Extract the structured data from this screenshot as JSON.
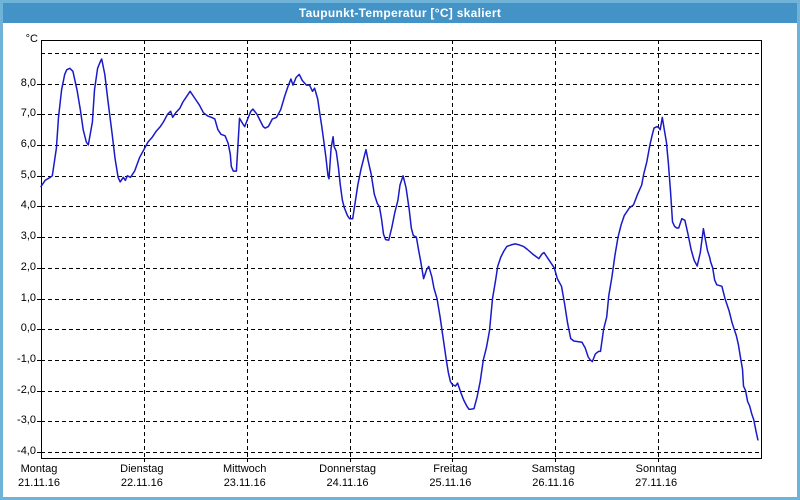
{
  "window": {
    "title": "Taupunkt-Temperatur [°C] skaliert",
    "title_bar_color": "#4493c6",
    "border_color": "#70b3d9"
  },
  "chart_data": {
    "type": "line",
    "title": "Taupunkt-Temperatur [°C] skaliert",
    "ylabel": "°C",
    "xlabel": "",
    "grid": "dashed-black",
    "legend": "none",
    "y_axis": {
      "unit_label": "°C",
      "grid_min": -4,
      "grid_max": 9,
      "tick_step": 1.0,
      "tick_labels": [
        "8,0",
        "7,0",
        "6,0",
        "5,0",
        "4,0",
        "3,0",
        "2,0",
        "1,0",
        "0,0",
        "-1,0",
        "-2,0",
        "-3,0",
        "-4,0"
      ]
    },
    "x_axis": {
      "days": [
        {
          "name": "Montag",
          "date": "21.11.16"
        },
        {
          "name": "Dienstag",
          "date": "22.11.16"
        },
        {
          "name": "Mittwoch",
          "date": "23.11.16"
        },
        {
          "name": "Donnerstag",
          "date": "24.11.16"
        },
        {
          "name": "Freitag",
          "date": "25.11.16"
        },
        {
          "name": "Samstag",
          "date": "26.11.16"
        },
        {
          "name": "Sonntag",
          "date": "27.11.16"
        }
      ]
    },
    "series": [
      {
        "name": "Taupunkt-Temperatur",
        "color": "#1a1ac8",
        "points": [
          [
            0.0,
            4.65
          ],
          [
            0.04,
            4.85
          ],
          [
            0.09,
            4.95
          ],
          [
            0.11,
            5.0
          ],
          [
            0.15,
            5.9
          ],
          [
            0.17,
            6.9
          ],
          [
            0.2,
            7.8
          ],
          [
            0.23,
            8.3
          ],
          [
            0.25,
            8.45
          ],
          [
            0.28,
            8.5
          ],
          [
            0.31,
            8.4
          ],
          [
            0.35,
            7.8
          ],
          [
            0.38,
            7.2
          ],
          [
            0.41,
            6.5
          ],
          [
            0.44,
            6.1
          ],
          [
            0.46,
            6.0
          ],
          [
            0.5,
            6.75
          ],
          [
            0.52,
            7.8
          ],
          [
            0.55,
            8.5
          ],
          [
            0.58,
            8.75
          ],
          [
            0.59,
            8.8
          ],
          [
            0.62,
            8.3
          ],
          [
            0.65,
            7.45
          ],
          [
            0.69,
            6.4
          ],
          [
            0.72,
            5.55
          ],
          [
            0.75,
            4.95
          ],
          [
            0.77,
            4.8
          ],
          [
            0.8,
            4.95
          ],
          [
            0.82,
            4.85
          ],
          [
            0.84,
            5.0
          ],
          [
            0.87,
            4.95
          ],
          [
            0.91,
            5.15
          ],
          [
            0.96,
            5.6
          ],
          [
            1.0,
            5.85
          ],
          [
            1.04,
            6.1
          ],
          [
            1.08,
            6.25
          ],
          [
            1.12,
            6.45
          ],
          [
            1.16,
            6.6
          ],
          [
            1.19,
            6.75
          ],
          [
            1.23,
            7.0
          ],
          [
            1.26,
            7.1
          ],
          [
            1.28,
            6.9
          ],
          [
            1.31,
            7.05
          ],
          [
            1.35,
            7.2
          ],
          [
            1.38,
            7.4
          ],
          [
            1.41,
            7.55
          ],
          [
            1.45,
            7.75
          ],
          [
            1.5,
            7.5
          ],
          [
            1.54,
            7.3
          ],
          [
            1.58,
            7.05
          ],
          [
            1.62,
            6.95
          ],
          [
            1.66,
            6.9
          ],
          [
            1.69,
            6.85
          ],
          [
            1.72,
            6.5
          ],
          [
            1.75,
            6.35
          ],
          [
            1.79,
            6.3
          ],
          [
            1.82,
            6.05
          ],
          [
            1.84,
            5.7
          ],
          [
            1.85,
            5.3
          ],
          [
            1.87,
            5.15
          ],
          [
            1.9,
            5.15
          ],
          [
            1.92,
            6.3
          ],
          [
            1.93,
            6.87
          ],
          [
            1.96,
            6.7
          ],
          [
            1.98,
            6.6
          ],
          [
            2.01,
            6.85
          ],
          [
            2.04,
            7.1
          ],
          [
            2.06,
            7.17
          ],
          [
            2.1,
            7.0
          ],
          [
            2.13,
            6.8
          ],
          [
            2.16,
            6.6
          ],
          [
            2.18,
            6.55
          ],
          [
            2.21,
            6.6
          ],
          [
            2.25,
            6.85
          ],
          [
            2.29,
            6.9
          ],
          [
            2.33,
            7.15
          ],
          [
            2.37,
            7.6
          ],
          [
            2.4,
            7.9
          ],
          [
            2.43,
            8.15
          ],
          [
            2.45,
            7.95
          ],
          [
            2.48,
            8.2
          ],
          [
            2.51,
            8.3
          ],
          [
            2.54,
            8.1
          ],
          [
            2.58,
            7.95
          ],
          [
            2.61,
            7.95
          ],
          [
            2.64,
            7.75
          ],
          [
            2.66,
            7.85
          ],
          [
            2.69,
            7.5
          ],
          [
            2.71,
            7.05
          ],
          [
            2.73,
            6.6
          ],
          [
            2.75,
            6.1
          ],
          [
            2.77,
            5.6
          ],
          [
            2.79,
            5.0
          ],
          [
            2.8,
            4.9
          ],
          [
            2.82,
            5.9
          ],
          [
            2.84,
            6.27
          ],
          [
            2.85,
            5.95
          ],
          [
            2.87,
            5.8
          ],
          [
            2.89,
            5.3
          ],
          [
            2.91,
            4.7
          ],
          [
            2.93,
            4.2
          ],
          [
            2.95,
            3.95
          ],
          [
            2.98,
            3.7
          ],
          [
            3.0,
            3.6
          ],
          [
            3.03,
            3.6
          ],
          [
            3.08,
            4.7
          ],
          [
            3.11,
            5.2
          ],
          [
            3.14,
            5.6
          ],
          [
            3.16,
            5.85
          ],
          [
            3.18,
            5.5
          ],
          [
            3.21,
            5.05
          ],
          [
            3.24,
            4.4
          ],
          [
            3.27,
            4.1
          ],
          [
            3.29,
            4.0
          ],
          [
            3.31,
            3.6
          ],
          [
            3.33,
            3.1
          ],
          [
            3.35,
            2.92
          ],
          [
            3.38,
            2.9
          ],
          [
            3.41,
            3.3
          ],
          [
            3.44,
            3.8
          ],
          [
            3.47,
            4.2
          ],
          [
            3.49,
            4.7
          ],
          [
            3.52,
            5.0
          ],
          [
            3.55,
            4.6
          ],
          [
            3.58,
            3.9
          ],
          [
            3.6,
            3.3
          ],
          [
            3.62,
            3.05
          ],
          [
            3.65,
            3.0
          ],
          [
            3.67,
            2.6
          ],
          [
            3.69,
            2.25
          ],
          [
            3.72,
            1.65
          ],
          [
            3.75,
            1.95
          ],
          [
            3.77,
            2.05
          ],
          [
            3.8,
            1.7
          ],
          [
            3.82,
            1.35
          ],
          [
            3.85,
            1.0
          ],
          [
            3.88,
            0.4
          ],
          [
            3.91,
            -0.3
          ],
          [
            3.94,
            -1.0
          ],
          [
            3.96,
            -1.4
          ],
          [
            3.98,
            -1.7
          ],
          [
            4.0,
            -1.8
          ],
          [
            4.03,
            -1.85
          ],
          [
            4.05,
            -1.75
          ],
          [
            4.08,
            -2.05
          ],
          [
            4.11,
            -2.3
          ],
          [
            4.14,
            -2.5
          ],
          [
            4.16,
            -2.6
          ],
          [
            4.18,
            -2.6
          ],
          [
            4.21,
            -2.58
          ],
          [
            4.24,
            -2.2
          ],
          [
            4.27,
            -1.7
          ],
          [
            4.3,
            -1.0
          ],
          [
            4.33,
            -0.6
          ],
          [
            4.36,
            -0.05
          ],
          [
            4.39,
            1.0
          ],
          [
            4.42,
            1.6
          ],
          [
            4.44,
            2.05
          ],
          [
            4.47,
            2.35
          ],
          [
            4.5,
            2.55
          ],
          [
            4.53,
            2.7
          ],
          [
            4.57,
            2.75
          ],
          [
            4.61,
            2.78
          ],
          [
            4.65,
            2.75
          ],
          [
            4.69,
            2.7
          ],
          [
            4.73,
            2.6
          ],
          [
            4.78,
            2.45
          ],
          [
            4.82,
            2.35
          ],
          [
            4.84,
            2.3
          ],
          [
            4.87,
            2.45
          ],
          [
            4.89,
            2.5
          ],
          [
            4.93,
            2.3
          ],
          [
            4.96,
            2.15
          ],
          [
            4.99,
            2.0
          ],
          [
            5.02,
            1.65
          ],
          [
            5.06,
            1.4
          ],
          [
            5.09,
            0.85
          ],
          [
            5.12,
            0.2
          ],
          [
            5.15,
            -0.3
          ],
          [
            5.18,
            -0.38
          ],
          [
            5.22,
            -0.4
          ],
          [
            5.26,
            -0.42
          ],
          [
            5.29,
            -0.6
          ],
          [
            5.32,
            -0.9
          ],
          [
            5.34,
            -1.0
          ],
          [
            5.36,
            -1.05
          ],
          [
            5.39,
            -0.8
          ],
          [
            5.42,
            -0.72
          ],
          [
            5.44,
            -0.72
          ],
          [
            5.47,
            0.0
          ],
          [
            5.5,
            0.4
          ],
          [
            5.52,
            1.1
          ],
          [
            5.55,
            1.7
          ],
          [
            5.58,
            2.4
          ],
          [
            5.61,
            3.0
          ],
          [
            5.64,
            3.4
          ],
          [
            5.67,
            3.7
          ],
          [
            5.72,
            3.95
          ],
          [
            5.76,
            4.05
          ],
          [
            5.8,
            4.4
          ],
          [
            5.84,
            4.7
          ],
          [
            5.86,
            5.05
          ],
          [
            5.89,
            5.45
          ],
          [
            5.92,
            6.0
          ],
          [
            5.94,
            6.3
          ],
          [
            5.96,
            6.55
          ],
          [
            5.99,
            6.6
          ],
          [
            6.01,
            6.55
          ],
          [
            6.02,
            6.5
          ],
          [
            6.04,
            6.9
          ],
          [
            6.06,
            6.5
          ],
          [
            6.08,
            6.1
          ],
          [
            6.1,
            5.4
          ],
          [
            6.12,
            4.5
          ],
          [
            6.13,
            4.0
          ],
          [
            6.14,
            3.5
          ],
          [
            6.16,
            3.35
          ],
          [
            6.18,
            3.3
          ],
          [
            6.2,
            3.3
          ],
          [
            6.23,
            3.6
          ],
          [
            6.26,
            3.55
          ],
          [
            6.29,
            3.1
          ],
          [
            6.32,
            2.6
          ],
          [
            6.35,
            2.25
          ],
          [
            6.38,
            2.06
          ],
          [
            6.41,
            2.5
          ],
          [
            6.44,
            3.28
          ],
          [
            6.46,
            2.9
          ],
          [
            6.48,
            2.56
          ],
          [
            6.5,
            2.35
          ],
          [
            6.51,
            2.2
          ],
          [
            6.53,
            2.0
          ],
          [
            6.55,
            1.6
          ],
          [
            6.57,
            1.45
          ],
          [
            6.6,
            1.42
          ],
          [
            6.62,
            1.4
          ],
          [
            6.65,
            1.0
          ],
          [
            6.69,
            0.6
          ],
          [
            6.72,
            0.2
          ],
          [
            6.76,
            -0.2
          ],
          [
            6.78,
            -0.5
          ],
          [
            6.8,
            -0.9
          ],
          [
            6.82,
            -1.3
          ],
          [
            6.83,
            -1.85
          ],
          [
            6.85,
            -2.0
          ],
          [
            6.87,
            -2.35
          ],
          [
            6.89,
            -2.5
          ],
          [
            6.91,
            -2.75
          ],
          [
            6.93,
            -2.95
          ],
          [
            6.95,
            -3.3
          ],
          [
            6.97,
            -3.6
          ]
        ]
      }
    ]
  }
}
